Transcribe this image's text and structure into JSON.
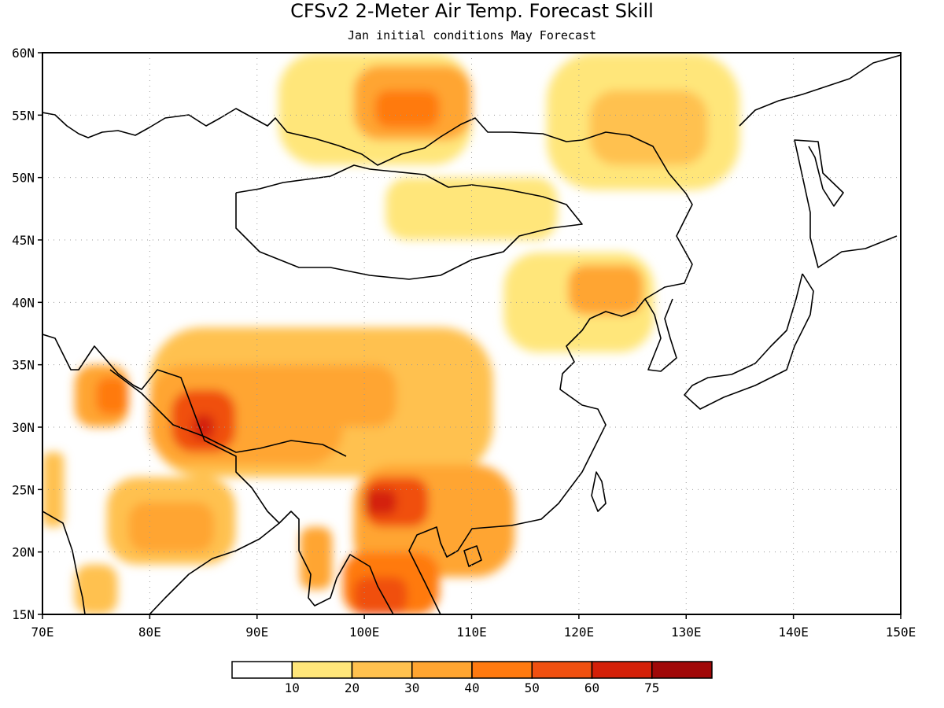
{
  "title": "CFSv2 2-Meter Air Temp. Forecast Skill",
  "subtitle": "Jan initial conditions  May Forecast",
  "map": {
    "lon_range": [
      70,
      150
    ],
    "lat_range": [
      15,
      60
    ],
    "lon_ticks": [
      {
        "value": 70,
        "label": "70E"
      },
      {
        "value": 80,
        "label": "80E"
      },
      {
        "value": 90,
        "label": "90E"
      },
      {
        "value": 100,
        "label": "100E"
      },
      {
        "value": 110,
        "label": "110E"
      },
      {
        "value": 120,
        "label": "120E"
      },
      {
        "value": 130,
        "label": "130E"
      },
      {
        "value": 140,
        "label": "140E"
      },
      {
        "value": 150,
        "label": "150E"
      }
    ],
    "lat_ticks": [
      {
        "value": 60,
        "label": "60N"
      },
      {
        "value": 55,
        "label": "55N"
      },
      {
        "value": 50,
        "label": "50N"
      },
      {
        "value": 45,
        "label": "45N"
      },
      {
        "value": 40,
        "label": "40N"
      },
      {
        "value": 35,
        "label": "35N"
      },
      {
        "value": 30,
        "label": "30N"
      },
      {
        "value": 25,
        "label": "25N"
      },
      {
        "value": 20,
        "label": "20N"
      },
      {
        "value": 15,
        "label": "15N"
      }
    ],
    "gridlines": true
  },
  "colorbar": {
    "labels": [
      "10",
      "20",
      "30",
      "40",
      "50",
      "60",
      "75"
    ],
    "colors": [
      "#ffffff",
      "#ffe67a",
      "#ffc14f",
      "#ffa531",
      "#ff7a10",
      "#f05010",
      "#d42008",
      "#a00808"
    ]
  },
  "chart_data": {
    "type": "heatmap",
    "variable": "2-Meter Air Temp. Forecast Skill",
    "levels": [
      10,
      20,
      30,
      40,
      50,
      60,
      75
    ],
    "regions": [
      {
        "lon": [
          92,
          110
        ],
        "lat": [
          51,
          60
        ],
        "value": 18
      },
      {
        "lon": [
          99,
          110
        ],
        "lat": [
          53,
          59
        ],
        "value": 30
      },
      {
        "lon": [
          101,
          107
        ],
        "lat": [
          54,
          57
        ],
        "value": 45
      },
      {
        "lon": [
          117,
          135
        ],
        "lat": [
          49,
          60
        ],
        "value": 15
      },
      {
        "lon": [
          121,
          132
        ],
        "lat": [
          51,
          57
        ],
        "value": 28
      },
      {
        "lon": [
          102,
          118
        ],
        "lat": [
          45,
          50
        ],
        "value": 12
      },
      {
        "lon": [
          113,
          127
        ],
        "lat": [
          36,
          44
        ],
        "value": 18
      },
      {
        "lon": [
          119,
          126
        ],
        "lat": [
          39,
          43
        ],
        "value": 30
      },
      {
        "lon": [
          80,
          112
        ],
        "lat": [
          26,
          38
        ],
        "value": 22
      },
      {
        "lon": [
          80,
          98
        ],
        "lat": [
          27,
          35
        ],
        "value": 35
      },
      {
        "lon": [
          82,
          88
        ],
        "lat": [
          28,
          33
        ],
        "value": 50
      },
      {
        "lon": [
          84,
          86
        ],
        "lat": [
          29,
          31
        ],
        "value": 62
      },
      {
        "lon": [
          91,
          103
        ],
        "lat": [
          30,
          35
        ],
        "value": 38
      },
      {
        "lon": [
          99,
          114
        ],
        "lat": [
          18,
          27
        ],
        "value": 30
      },
      {
        "lon": [
          100,
          106
        ],
        "lat": [
          22,
          26
        ],
        "value": 50
      },
      {
        "lon": [
          100,
          103
        ],
        "lat": [
          23,
          25
        ],
        "value": 62
      },
      {
        "lon": [
          98,
          107
        ],
        "lat": [
          15,
          20
        ],
        "value": 45
      },
      {
        "lon": [
          99,
          104
        ],
        "lat": [
          15,
          18
        ],
        "value": 55
      },
      {
        "lon": [
          76,
          88
        ],
        "lat": [
          19,
          26
        ],
        "value": 22
      },
      {
        "lon": [
          78,
          86
        ],
        "lat": [
          20,
          24
        ],
        "value": 32
      },
      {
        "lon": [
          73,
          78
        ],
        "lat": [
          30,
          35
        ],
        "value": 35
      },
      {
        "lon": [
          75,
          78
        ],
        "lat": [
          31,
          34
        ],
        "value": 48
      },
      {
        "lon": [
          70,
          72
        ],
        "lat": [
          22,
          28
        ],
        "value": 25
      },
      {
        "lon": [
          73,
          77
        ],
        "lat": [
          15,
          19
        ],
        "value": 22
      },
      {
        "lon": [
          94,
          97
        ],
        "lat": [
          17,
          22
        ],
        "value": 32
      }
    ]
  }
}
